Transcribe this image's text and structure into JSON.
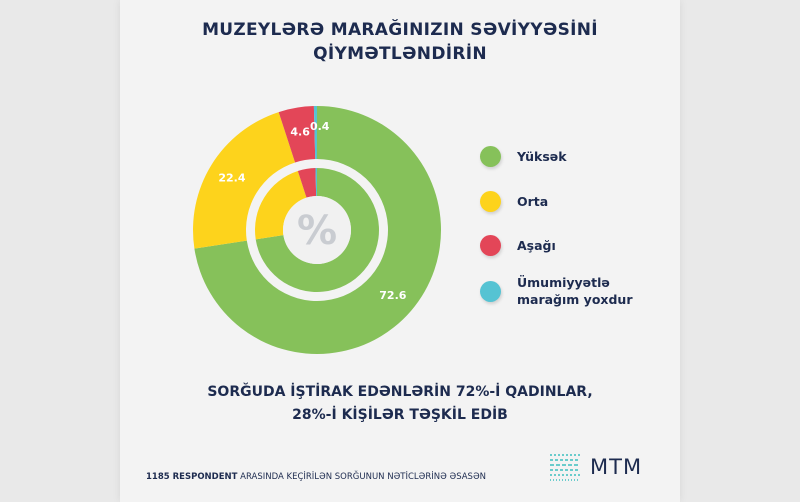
{
  "header": {
    "title_line1": "MUZEYLƏRƏ MARAĞINIZIN SƏVİYYƏSİNİ",
    "title_line2": "QİYMƏTLƏNDİRİN"
  },
  "chart_data": {
    "type": "pie",
    "variant": "double donut",
    "center_label": "%",
    "categories": [
      "Yüksək",
      "Orta",
      "Aşağı",
      "Ümumiyyətlə marağım yoxdur"
    ],
    "values": [
      72.6,
      22.4,
      4.6,
      0.4
    ],
    "data_labels": [
      "72.6",
      "22.4",
      "4.6",
      "0.4"
    ],
    "colors": [
      "#86c15a",
      "#fdd31c",
      "#e34658",
      "#55c3d3"
    ],
    "legend_position": "right"
  },
  "legend": {
    "items": [
      "Yüksək",
      "Orta",
      "Aşağı",
      "Ümumiyyətlə marağım yoxdur"
    ],
    "item4_line1": "Ümumiyyətlə",
    "item4_line2": "marağım yoxdur"
  },
  "note": {
    "line1": "SORĞUDA İŞTİRAK EDƏNLƏRİN 72%-İ QADINLAR,",
    "line2": "28%-İ KİŞİLƏR TƏŞKİL EDİB"
  },
  "footer": {
    "bold": "1185 RESPONDENT",
    "rest": " ARASINDA KEÇİRİLƏN SORĞUNUN NƏTİCLƏRİNƏ ƏSASƏN"
  },
  "logo": {
    "text": "MTM",
    "color": "#3cc0c0"
  }
}
